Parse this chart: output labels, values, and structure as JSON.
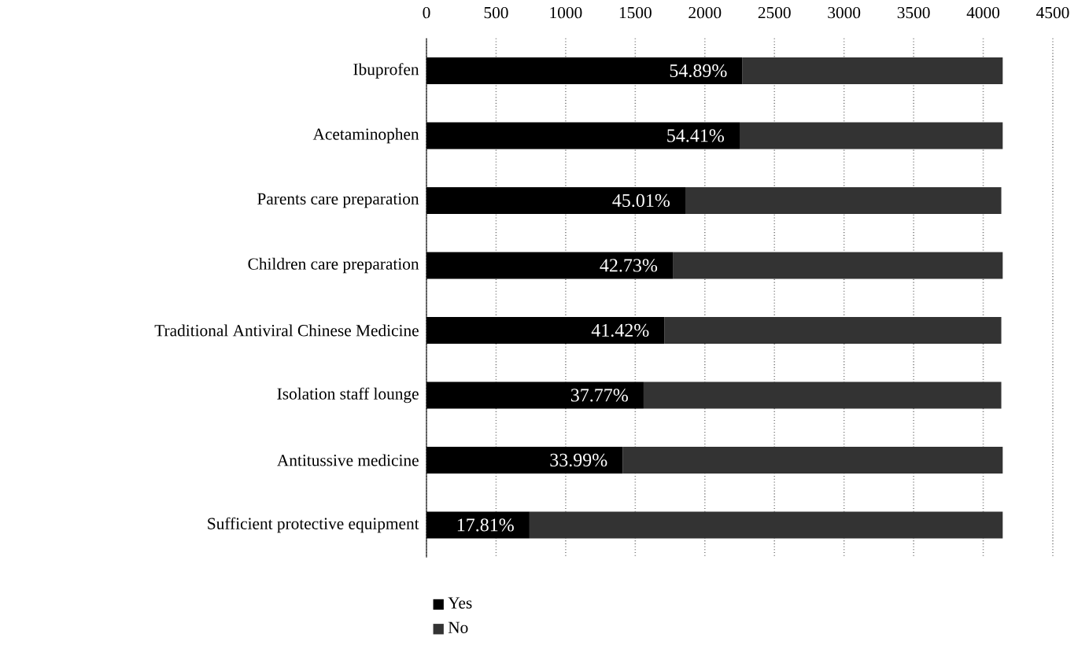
{
  "chart_data": {
    "type": "bar",
    "orientation": "horizontal",
    "stacked": true,
    "categories": [
      "Ibuprofen",
      "Acetaminophen",
      "Parents care preparation",
      "Children care preparation",
      "Traditional Antiviral Chinese Medicine",
      "Isolation staff lounge",
      "Antitussive medicine",
      "Sufficient protective equipment"
    ],
    "series": [
      {
        "name": "Yes",
        "color": "#000000",
        "values": [
          2270,
          2250,
          1860,
          1770,
          1710,
          1560,
          1410,
          740
        ]
      },
      {
        "name": "No",
        "color": "#333333",
        "values": [
          1870,
          1890,
          2270,
          2370,
          2420,
          2570,
          2730,
          3400
        ]
      }
    ],
    "annotations": [
      {
        "text": "54.89%",
        "x": 2270,
        "y": "Ibuprofen"
      },
      {
        "text": "54.41%",
        "x": 2250,
        "y": "Acetaminophen"
      },
      {
        "text": "45.01%",
        "x": 1860,
        "y": "Parents care preparation"
      },
      {
        "text": "42.73%",
        "x": 1770,
        "y": "Children care preparation"
      },
      {
        "text": "41.42%",
        "x": 1710,
        "y": "Traditional Antiviral Chinese Medicine"
      },
      {
        "text": "37.77%",
        "x": 1560,
        "y": "Isolation staff lounge"
      },
      {
        "text": "33.99%",
        "x": 1410,
        "y": "Antitussive medicine"
      },
      {
        "text": "17.81%",
        "x": 740,
        "y": "Sufficient protective equipment"
      }
    ],
    "xlim": [
      0,
      4500
    ],
    "xticks": [
      0,
      500,
      1000,
      1500,
      2000,
      2500,
      3000,
      3500,
      4000,
      4500
    ],
    "grid": "x",
    "legend": "bottom"
  }
}
